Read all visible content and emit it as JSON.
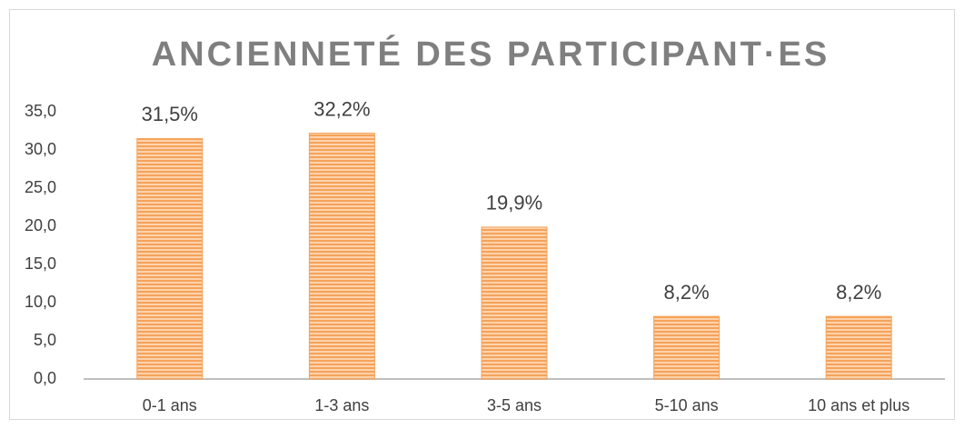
{
  "chart_data": {
    "type": "bar",
    "title": "ANCIENNETÉ DES PARTICIPANT·ES",
    "categories": [
      "0-1 ans",
      "1-3 ans",
      "3-5 ans",
      "5-10 ans",
      "10 ans et plus"
    ],
    "values": [
      31.5,
      32.2,
      19.9,
      8.2,
      8.2
    ],
    "value_labels": [
      "31,5%",
      "32,2%",
      "19,9%",
      "8,2%",
      "8,2%"
    ],
    "color": "#f5a25a",
    "ylim": [
      0,
      35
    ],
    "yticks": [
      {
        "value": 0,
        "label": "0,0"
      },
      {
        "value": 5,
        "label": "5,0"
      },
      {
        "value": 10,
        "label": "10,0"
      },
      {
        "value": 15,
        "label": "15,0"
      },
      {
        "value": 20,
        "label": "20,0"
      },
      {
        "value": 25,
        "label": "25,0"
      },
      {
        "value": 30,
        "label": "30,0"
      },
      {
        "value": 35,
        "label": "35,0"
      }
    ],
    "grid": false
  }
}
